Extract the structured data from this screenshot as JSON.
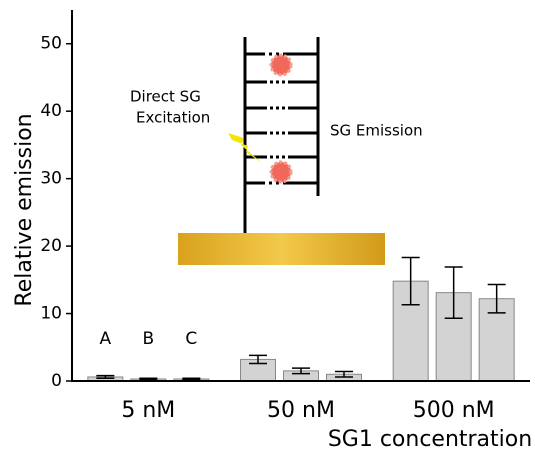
{
  "chart_data": {
    "type": "bar",
    "x_label": "SG1 concentration",
    "y_label": "Relative emission",
    "categories": [
      "5 nM",
      "50 nM",
      "500 nM"
    ],
    "series": [
      {
        "name": "A",
        "color": "#d3d3d3",
        "values": [
          0.6,
          3.2,
          14.8
        ],
        "errors": [
          0.2,
          0.6,
          3.5
        ]
      },
      {
        "name": "B",
        "color": "#d3d3d3",
        "values": [
          0.3,
          1.5,
          13.1
        ],
        "errors": [
          0.1,
          0.4,
          3.8
        ]
      },
      {
        "name": "C",
        "color": "#d3d3d3",
        "values": [
          0.3,
          1.0,
          12.2
        ],
        "errors": [
          0.1,
          0.4,
          2.1
        ]
      }
    ],
    "ylim": [
      0,
      55
    ],
    "yticks": [
      0,
      10,
      20,
      30,
      40,
      50
    ],
    "annotations": [
      "Direct SG",
      "Excitation",
      "SG Emission"
    ]
  }
}
